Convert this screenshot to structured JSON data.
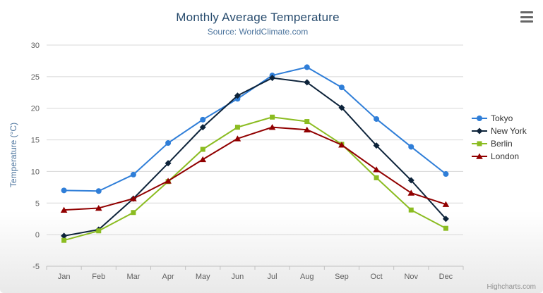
{
  "chart_data": {
    "type": "line",
    "title": "Monthly Average Temperature",
    "subtitle": "Source: WorldClimate.com",
    "categories": [
      "Jan",
      "Feb",
      "Mar",
      "Apr",
      "May",
      "Jun",
      "Jul",
      "Aug",
      "Sep",
      "Oct",
      "Nov",
      "Dec"
    ],
    "series": [
      {
        "name": "Tokyo",
        "color": "#2f7ed8",
        "marker": "circle",
        "values": [
          7.0,
          6.9,
          9.5,
          14.5,
          18.2,
          21.5,
          25.2,
          26.5,
          23.3,
          18.3,
          13.9,
          9.6
        ]
      },
      {
        "name": "New York",
        "color": "#0d233a",
        "marker": "diamond",
        "values": [
          -0.2,
          0.8,
          5.7,
          11.3,
          17.0,
          22.0,
          24.8,
          24.1,
          20.1,
          14.1,
          8.6,
          2.5
        ]
      },
      {
        "name": "Berlin",
        "color": "#8bbc21",
        "marker": "square",
        "values": [
          -0.9,
          0.6,
          3.5,
          8.4,
          13.5,
          17.0,
          18.6,
          17.9,
          14.3,
          9.0,
          3.9,
          1.0
        ]
      },
      {
        "name": "London",
        "color": "#910000",
        "marker": "triangle",
        "values": [
          3.9,
          4.2,
          5.7,
          8.5,
          11.9,
          15.2,
          17.0,
          16.6,
          14.2,
          10.3,
          6.6,
          4.8
        ]
      }
    ],
    "xlabel": "",
    "ylabel": "Temperature (°C)",
    "ylim": [
      -5,
      30
    ],
    "ytick_step": 5,
    "grid": true,
    "legend_position": "right",
    "colors": {
      "grid_line": "#d8d8d8",
      "axis_line": "#c0c0c0",
      "title_text": "#274b6d",
      "subtitle_text": "#4d759e",
      "axis_label_text": "#606060"
    }
  },
  "export_menu": {
    "icon": "hamburger-icon"
  },
  "credits": {
    "label": "Highcharts.com"
  }
}
